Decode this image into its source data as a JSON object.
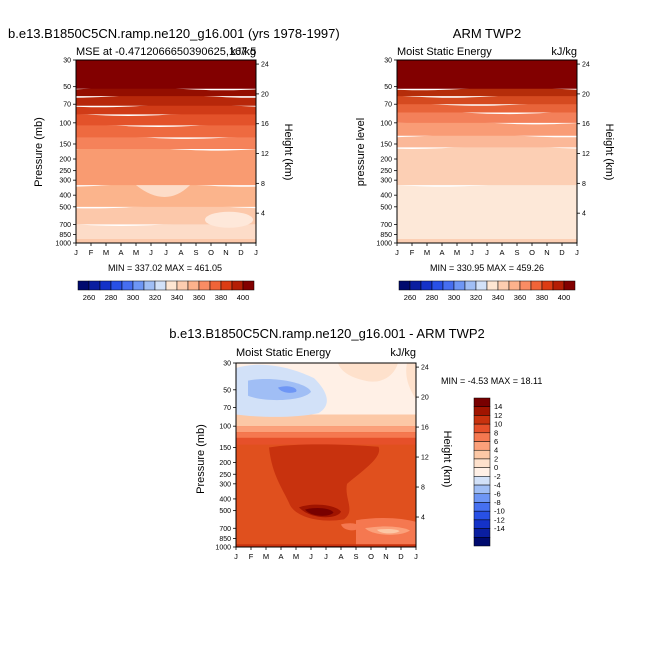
{
  "chart_data": [
    {
      "type": "heatmap",
      "title": "b.e13.B1850C5CN.ramp.ne120_g16.001 (yrs 1978-1997)",
      "subtitle_left": "MSE at -0.4712066650390625,167.5",
      "subtitle_right": "kJ/kg",
      "ylabel": "Pressure (mb)",
      "ylabel_right": "Height (km)",
      "x_ticks": [
        "J",
        "F",
        "M",
        "A",
        "M",
        "J",
        "J",
        "A",
        "S",
        "O",
        "N",
        "D",
        "J"
      ],
      "y_ticks": [
        "30",
        "50",
        "70",
        "100",
        "150",
        "200",
        "250",
        "300",
        "400",
        "500",
        "700",
        "850",
        "1000"
      ],
      "y_right_ticks": [
        "24",
        "20",
        "16",
        "12",
        "8",
        "4"
      ],
      "stats": "MIN = 337.02 MAX = 461.05",
      "levels": [
        260,
        270,
        280,
        290,
        300,
        310,
        320,
        330,
        340,
        350,
        360,
        370,
        380,
        390,
        400
      ],
      "colorbar_labels": [
        "260",
        "280",
        "300",
        "320",
        "340",
        "360",
        "380",
        "400"
      ],
      "bands_top_mb": [
        1000,
        700,
        500,
        330,
        165,
        132,
        105,
        85,
        72,
        60,
        52
      ]
    },
    {
      "type": "heatmap",
      "title": "ARM TWP2",
      "subtitle_left": "Moist Static Energy",
      "subtitle_right": "kJ/kg",
      "ylabel": "pressure level",
      "ylabel_right": "Height (km)",
      "x_ticks": [
        "J",
        "F",
        "M",
        "A",
        "M",
        "J",
        "J",
        "A",
        "S",
        "O",
        "N",
        "D",
        "J"
      ],
      "y_ticks": [
        "30",
        "50",
        "70",
        "100",
        "150",
        "200",
        "250",
        "300",
        "400",
        "500",
        "700",
        "850",
        "1000"
      ],
      "y_right_ticks": [
        "24",
        "20",
        "16",
        "12",
        "8",
        "4"
      ],
      "stats": "MIN = 330.95 MAX = 459.26",
      "levels": [
        260,
        270,
        280,
        290,
        300,
        310,
        320,
        330,
        340,
        350,
        360,
        370,
        380,
        390,
        400
      ],
      "colorbar_labels": [
        "260",
        "280",
        "300",
        "320",
        "340",
        "360",
        "380",
        "400"
      ],
      "bands_top_mb": [
        1000,
        330,
        160,
        128,
        100,
        82,
        70,
        60,
        52
      ]
    },
    {
      "type": "heatmap",
      "title": "b.e13.B1850C5CN.ramp.ne120_g16.001 - ARM TWP2",
      "subtitle_left": "Moist Static Energy",
      "subtitle_right": "kJ/kg",
      "ylabel": "Pressure (mb)",
      "ylabel_right": "Height (km)",
      "x_ticks": [
        "J",
        "F",
        "M",
        "A",
        "M",
        "J",
        "J",
        "A",
        "S",
        "O",
        "N",
        "D",
        "J"
      ],
      "y_ticks": [
        "30",
        "50",
        "70",
        "100",
        "150",
        "200",
        "250",
        "300",
        "400",
        "500",
        "700",
        "850",
        "1000"
      ],
      "y_right_ticks": [
        "24",
        "20",
        "16",
        "12",
        "8",
        "4"
      ],
      "stats": "MIN =  -4.53 MAX =  18.11",
      "levels": [
        -14,
        -12,
        -10,
        -8,
        -6,
        -4,
        -2,
        0,
        2,
        4,
        6,
        8,
        10,
        12,
        14
      ],
      "colorbar_labels": [
        "14",
        "12",
        "10",
        "8",
        "6",
        "4",
        "2",
        "0",
        "-2",
        "-4",
        "-6",
        "-8",
        "-10",
        "-12",
        "-14"
      ]
    }
  ]
}
